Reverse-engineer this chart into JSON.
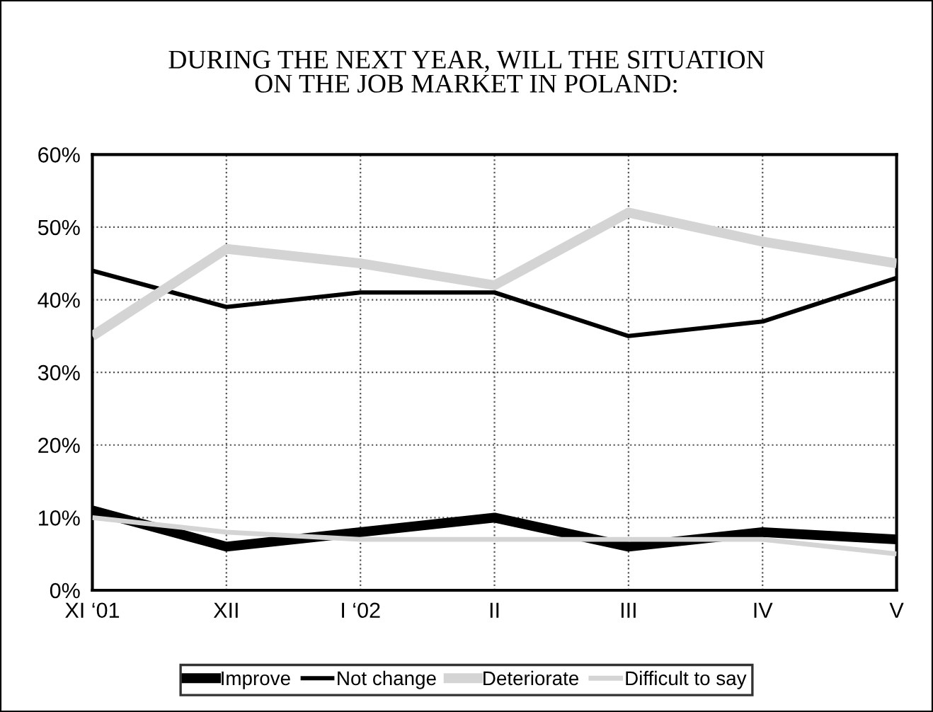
{
  "chart_data": {
    "type": "line",
    "title": "DURING THE NEXT YEAR, WILL THE SITUATION\nON THE JOB MARKET IN POLAND:",
    "categories": [
      "XI ‘01",
      "XII",
      "I ‘02",
      "II",
      "III",
      "IV",
      "V"
    ],
    "series": [
      {
        "name": "Improve",
        "color": "#000000",
        "values": [
          11,
          6,
          8,
          10,
          6,
          8,
          7
        ]
      },
      {
        "name": "Not change",
        "color": "#000000",
        "values": [
          44,
          39,
          41,
          41,
          35,
          37,
          43
        ]
      },
      {
        "name": "Deteriorate",
        "color": "#d4d4d4",
        "values": [
          35,
          47,
          45,
          42,
          52,
          48,
          45
        ]
      },
      {
        "name": "Difficult to say",
        "color": "#d4d4d4",
        "values": [
          10,
          8,
          7,
          7,
          7,
          7,
          5
        ]
      }
    ],
    "ylim": [
      0,
      60
    ],
    "yticks": [
      {
        "value": 0,
        "label": "0%"
      },
      {
        "value": 10,
        "label": "10%"
      },
      {
        "value": 20,
        "label": "20%"
      },
      {
        "value": 30,
        "label": "30%"
      },
      {
        "value": 40,
        "label": "40%"
      },
      {
        "value": 50,
        "label": "50%"
      },
      {
        "value": 60,
        "label": "60%"
      }
    ],
    "grid": true,
    "legend": "bottom",
    "marker": "none",
    "line_style": "solid"
  }
}
